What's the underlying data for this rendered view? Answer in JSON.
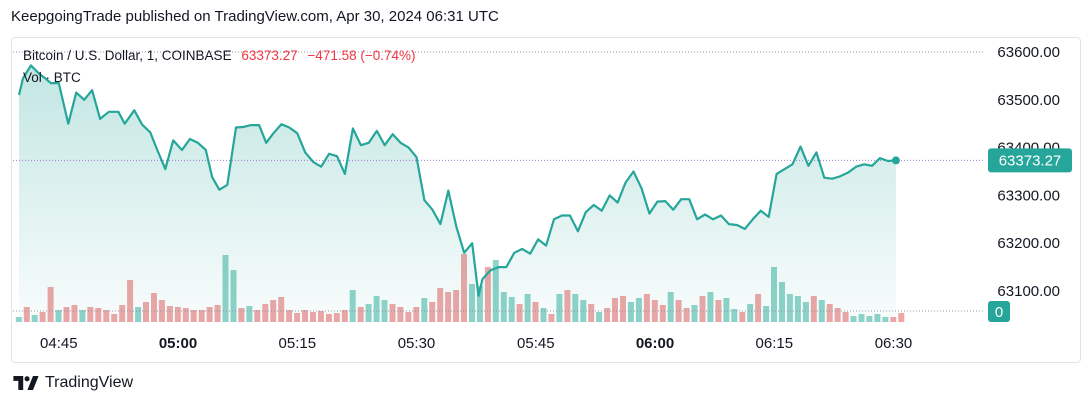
{
  "header": {
    "attribution": "KeepgoingTrade published on TradingView.com, Apr 30, 2024 06:31 UTC"
  },
  "legend": {
    "symbol": "Bitcoin / U.S. Dollar, 1, COINBASE",
    "last": "63373.27",
    "change": "−471.58 (−0.74%)",
    "volume_label": "Vol · BTC"
  },
  "footer": {
    "brand": "TradingView"
  },
  "colors": {
    "line": "#26a69a",
    "area_top": "#26a69a",
    "vol_up": "#8fd3c9",
    "vol_down": "#efa6a6",
    "price_badge": "#26a69a",
    "negative": "#f23645",
    "grid_dotted": "#9598a1"
  },
  "chart_data": {
    "type": "area",
    "title": "Bitcoin / U.S. Dollar, 1, COINBASE",
    "ylim": [
      63000,
      63650
    ],
    "y_ticks": [
      "63600.00",
      "63500.00",
      "63400.00",
      "63300.00",
      "63200.00",
      "63100.00"
    ],
    "y_tick_values": [
      63600,
      63500,
      63400,
      63300,
      63200,
      63100
    ],
    "x_ticks": [
      "04:45",
      "05:00",
      "05:15",
      "05:30",
      "05:45",
      "06:00",
      "06:15",
      "06:30"
    ],
    "x_tick_minutes": [
      5,
      20,
      35,
      50,
      65,
      80,
      95,
      110
    ],
    "bold_ticks": [
      "05:00",
      "06:00"
    ],
    "last_price": 63373.27,
    "last_price_label": "63373.27",
    "volume_badge": "0",
    "price_series": [
      [
        0.0,
        63510
      ],
      [
        0.5,
        63545
      ],
      [
        1.5,
        63572
      ],
      [
        2.5,
        63555
      ],
      [
        3.3,
        63545
      ],
      [
        4.0,
        63535
      ],
      [
        5.0,
        63535
      ],
      [
        6.2,
        63450
      ],
      [
        7.2,
        63515
      ],
      [
        8.2,
        63500
      ],
      [
        9.2,
        63520
      ],
      [
        10.2,
        63460
      ],
      [
        11.3,
        63475
      ],
      [
        12.5,
        63475
      ],
      [
        13.3,
        63450
      ],
      [
        14.5,
        63478
      ],
      [
        15.5,
        63448
      ],
      [
        16.5,
        63432
      ],
      [
        17.4,
        63395
      ],
      [
        18.4,
        63355
      ],
      [
        19.4,
        63415
      ],
      [
        20.5,
        63395
      ],
      [
        21.5,
        63418
      ],
      [
        22.5,
        63410
      ],
      [
        23.5,
        63395
      ],
      [
        24.3,
        63338
      ],
      [
        25.2,
        63312
      ],
      [
        26.2,
        63322
      ],
      [
        27.3,
        63442
      ],
      [
        28.2,
        63443
      ],
      [
        29.2,
        63447
      ],
      [
        30.2,
        63447
      ],
      [
        31.1,
        63410
      ],
      [
        32.0,
        63430
      ],
      [
        33.0,
        63449
      ],
      [
        34.0,
        63442
      ],
      [
        35.0,
        63430
      ],
      [
        36.0,
        63390
      ],
      [
        37.0,
        63370
      ],
      [
        38.0,
        63360
      ],
      [
        39.0,
        63387
      ],
      [
        40.0,
        63382
      ],
      [
        41.0,
        63345
      ],
      [
        42.0,
        63440
      ],
      [
        43.0,
        63405
      ],
      [
        44.0,
        63410
      ],
      [
        45.0,
        63435
      ],
      [
        46.0,
        63405
      ],
      [
        47.0,
        63428
      ],
      [
        48.0,
        63410
      ],
      [
        49.0,
        63400
      ],
      [
        50.0,
        63380
      ],
      [
        51.0,
        63290
      ],
      [
        52.0,
        63270
      ],
      [
        53.0,
        63240
      ],
      [
        54.0,
        63310
      ],
      [
        55.0,
        63235
      ],
      [
        56.0,
        63180
      ],
      [
        57.0,
        63200
      ],
      [
        57.8,
        63090
      ],
      [
        58.3,
        63125
      ],
      [
        59.3,
        63143
      ],
      [
        60.3,
        63150
      ],
      [
        61.3,
        63150
      ],
      [
        62.3,
        63180
      ],
      [
        63.3,
        63188
      ],
      [
        64.3,
        63178
      ],
      [
        65.3,
        63208
      ],
      [
        66.3,
        63195
      ],
      [
        67.3,
        63250
      ],
      [
        68.3,
        63258
      ],
      [
        69.3,
        63258
      ],
      [
        70.3,
        63225
      ],
      [
        71.3,
        63265
      ],
      [
        72.3,
        63280
      ],
      [
        73.3,
        63268
      ],
      [
        74.3,
        63300
      ],
      [
        75.3,
        63285
      ],
      [
        76.3,
        63327
      ],
      [
        77.3,
        63350
      ],
      [
        78.3,
        63315
      ],
      [
        79.3,
        63262
      ],
      [
        80.3,
        63287
      ],
      [
        81.3,
        63288
      ],
      [
        82.3,
        63270
      ],
      [
        83.3,
        63292
      ],
      [
        84.3,
        63292
      ],
      [
        85.3,
        63250
      ],
      [
        86.3,
        63260
      ],
      [
        87.3,
        63250
      ],
      [
        88.3,
        63258
      ],
      [
        89.3,
        63240
      ],
      [
        90.3,
        63238
      ],
      [
        91.3,
        63230
      ],
      [
        92.3,
        63250
      ],
      [
        93.3,
        63268
      ],
      [
        94.3,
        63255
      ],
      [
        95.3,
        63345
      ],
      [
        96.3,
        63355
      ],
      [
        97.3,
        63365
      ],
      [
        98.3,
        63402
      ],
      [
        99.3,
        63362
      ],
      [
        100.3,
        63390
      ],
      [
        101.3,
        63337
      ],
      [
        102.3,
        63335
      ],
      [
        103.3,
        63340
      ],
      [
        104.3,
        63348
      ],
      [
        105.3,
        63360
      ],
      [
        106.3,
        63365
      ],
      [
        107.3,
        63362
      ],
      [
        108.3,
        63378
      ],
      [
        109.3,
        63372
      ],
      [
        110.3,
        63373.27
      ]
    ],
    "volume_series": [
      [
        0,
        "up",
        5
      ],
      [
        1,
        "down",
        15
      ],
      [
        2,
        "up",
        7
      ],
      [
        3,
        "down",
        10
      ],
      [
        4,
        "down",
        35
      ],
      [
        5,
        "up",
        12
      ],
      [
        6,
        "down",
        15
      ],
      [
        7,
        "down",
        17
      ],
      [
        8,
        "up",
        12
      ],
      [
        9,
        "down",
        15
      ],
      [
        10,
        "down",
        14
      ],
      [
        11,
        "down",
        12
      ],
      [
        12,
        "down",
        8
      ],
      [
        13,
        "down",
        17
      ],
      [
        14,
        "down",
        42
      ],
      [
        15,
        "up",
        15
      ],
      [
        16,
        "down",
        20
      ],
      [
        17,
        "down",
        29
      ],
      [
        18,
        "down",
        22
      ],
      [
        19,
        "down",
        16
      ],
      [
        20,
        "down",
        15
      ],
      [
        21,
        "down",
        14
      ],
      [
        22,
        "down",
        12
      ],
      [
        23,
        "down",
        12
      ],
      [
        24,
        "down",
        15
      ],
      [
        25,
        "down",
        17
      ],
      [
        26,
        "up",
        67
      ],
      [
        27,
        "up",
        52
      ],
      [
        28,
        "down",
        14
      ],
      [
        29,
        "up",
        16
      ],
      [
        30,
        "down",
        12
      ],
      [
        31,
        "down",
        18
      ],
      [
        32,
        "down",
        22
      ],
      [
        33,
        "down",
        25
      ],
      [
        34,
        "down",
        12
      ],
      [
        35,
        "down",
        9
      ],
      [
        36,
        "down",
        12
      ],
      [
        37,
        "down",
        10
      ],
      [
        38,
        "down",
        11
      ],
      [
        39,
        "down",
        8
      ],
      [
        40,
        "down",
        9
      ],
      [
        41,
        "down",
        12
      ],
      [
        42,
        "up",
        32
      ],
      [
        43,
        "down",
        15
      ],
      [
        44,
        "up",
        18
      ],
      [
        45,
        "up",
        26
      ],
      [
        46,
        "up",
        22
      ],
      [
        47,
        "down",
        18
      ],
      [
        48,
        "down",
        15
      ],
      [
        49,
        "down",
        10
      ],
      [
        50,
        "down",
        15
      ],
      [
        51,
        "up",
        24
      ],
      [
        52,
        "down",
        20
      ],
      [
        53,
        "down",
        34
      ],
      [
        54,
        "down",
        30
      ],
      [
        55,
        "down",
        32
      ],
      [
        56,
        "down",
        68
      ],
      [
        57,
        "up",
        38
      ],
      [
        58,
        "up",
        36
      ],
      [
        59,
        "down",
        55
      ],
      [
        60,
        "up",
        62
      ],
      [
        61,
        "up",
        30
      ],
      [
        62,
        "up",
        25
      ],
      [
        63,
        "down",
        18
      ],
      [
        64,
        "up",
        28
      ],
      [
        65,
        "down",
        20
      ],
      [
        66,
        "up",
        14
      ],
      [
        67,
        "down",
        8
      ],
      [
        68,
        "up",
        28
      ],
      [
        69,
        "down",
        32
      ],
      [
        70,
        "up",
        28
      ],
      [
        71,
        "up",
        22
      ],
      [
        72,
        "down",
        18
      ],
      [
        73,
        "up",
        10
      ],
      [
        74,
        "down",
        14
      ],
      [
        75,
        "down",
        24
      ],
      [
        76,
        "down",
        26
      ],
      [
        77,
        "up",
        20
      ],
      [
        78,
        "up",
        24
      ],
      [
        79,
        "down",
        28
      ],
      [
        80,
        "down",
        22
      ],
      [
        81,
        "down",
        17
      ],
      [
        82,
        "up",
        30
      ],
      [
        83,
        "down",
        22
      ],
      [
        84,
        "down",
        14
      ],
      [
        85,
        "up",
        17
      ],
      [
        86,
        "down",
        26
      ],
      [
        87,
        "up",
        30
      ],
      [
        88,
        "down",
        22
      ],
      [
        89,
        "up",
        24
      ],
      [
        90,
        "up",
        13
      ],
      [
        91,
        "down",
        10
      ],
      [
        92,
        "up",
        18
      ],
      [
        93,
        "down",
        28
      ],
      [
        94,
        "up",
        16
      ],
      [
        95,
        "up",
        55
      ],
      [
        96,
        "up",
        40
      ],
      [
        97,
        "up",
        28
      ],
      [
        98,
        "up",
        26
      ],
      [
        99,
        "up",
        20
      ],
      [
        100,
        "down",
        26
      ],
      [
        101,
        "up",
        22
      ],
      [
        102,
        "down",
        18
      ],
      [
        103,
        "down",
        14
      ],
      [
        104,
        "down",
        10
      ],
      [
        105,
        "up",
        6
      ],
      [
        106,
        "up",
        8
      ],
      [
        107,
        "up",
        6
      ],
      [
        108,
        "up",
        8
      ],
      [
        109,
        "up",
        5
      ],
      [
        110,
        "down",
        5
      ],
      [
        111,
        "down",
        9
      ]
    ]
  }
}
